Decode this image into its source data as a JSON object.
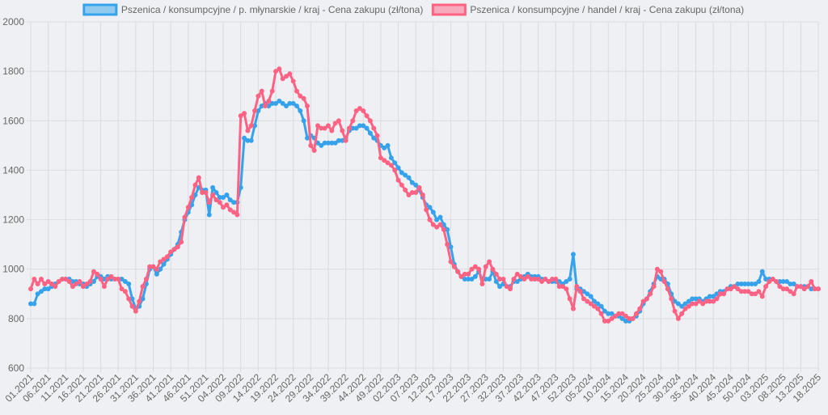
{
  "chart_data": {
    "type": "line",
    "categories": [
      "01.2021",
      null,
      null,
      null,
      null,
      "06.2021",
      null,
      null,
      null,
      null,
      "11.2021",
      null,
      null,
      null,
      null,
      "16.2021",
      null,
      null,
      null,
      null,
      "21.2021",
      null,
      null,
      null,
      null,
      "26.2021",
      null,
      null,
      null,
      null,
      "31.2021",
      null,
      null,
      null,
      null,
      "36.2021",
      null,
      null,
      null,
      null,
      "41.2021",
      null,
      null,
      null,
      null,
      "46.2021",
      null,
      null,
      null,
      null,
      "51.2021",
      null,
      null,
      null,
      null,
      "04.2022",
      null,
      null,
      null,
      null,
      "09.2022",
      null,
      null,
      null,
      null,
      "14.2022",
      null,
      null,
      null,
      null,
      "19.2022",
      null,
      null,
      null,
      null,
      "24.2022",
      null,
      null,
      null,
      null,
      "29.2022",
      null,
      null,
      null,
      null,
      "34.2022",
      null,
      null,
      null,
      null,
      "39.2022",
      null,
      null,
      null,
      null,
      "44.2022",
      null,
      null,
      null,
      null,
      "49.2022",
      null,
      null,
      null,
      null,
      "02.2023",
      null,
      null,
      null,
      null,
      "07.2023",
      null,
      null,
      null,
      null,
      "12.2023",
      null,
      null,
      null,
      null,
      "17.2023",
      null,
      null,
      null,
      null,
      "22.2023",
      null,
      null,
      null,
      null,
      "27.2023",
      null,
      null,
      null,
      null,
      "32.2023",
      null,
      null,
      null,
      null,
      "37.2023",
      null,
      null,
      null,
      null,
      "42.2023",
      null,
      null,
      null,
      null,
      "47.2023",
      null,
      null,
      null,
      null,
      "52.2023",
      null,
      null,
      null,
      null,
      "05.2024",
      null,
      null,
      null,
      null,
      "10.2024",
      null,
      null,
      null,
      null,
      "15.2024",
      null,
      null,
      null,
      null,
      "20.2024",
      null,
      null,
      null,
      null,
      "25.2024",
      null,
      null,
      null,
      null,
      "30.2024",
      null,
      null,
      null,
      null,
      "35.2024",
      null,
      null,
      null,
      null,
      "40.2024",
      null,
      null,
      null,
      null,
      "45.2024",
      null,
      null,
      null,
      null,
      "50.2024",
      null,
      null,
      null,
      null,
      "03.2025",
      null,
      null,
      null,
      null,
      "08.2025",
      null,
      null,
      null,
      null,
      "13.2025",
      null,
      null,
      null,
      null,
      "18.2025"
    ],
    "series": [
      {
        "name": "Pszenica / konsumpcyjne / p. młynarskie / kraj - Cena zakupu (zł/tona)",
        "color": "#36a2eb",
        "values": [
          860,
          860,
          900,
          910,
          920,
          920,
          930,
          940,
          950,
          960,
          960,
          960,
          950,
          950,
          940,
          940,
          930,
          940,
          950,
          970,
          970,
          960,
          970,
          960,
          960,
          960,
          960,
          950,
          940,
          880,
          840,
          850,
          880,
          940,
          1000,
          1010,
          980,
          1000,
          1020,
          1040,
          1060,
          1080,
          1100,
          1150,
          1200,
          1230,
          1260,
          1300,
          1330,
          1320,
          1320,
          1220,
          1330,
          1310,
          1290,
          1290,
          1300,
          1280,
          1270,
          1270,
          1330,
          1530,
          1520,
          1520,
          1580,
          1640,
          1660,
          1670,
          1660,
          1670,
          1670,
          1680,
          1670,
          1660,
          1670,
          1670,
          1660,
          1640,
          1600,
          1530,
          1540,
          1530,
          1510,
          1500,
          1510,
          1510,
          1510,
          1510,
          1520,
          1520,
          1530,
          1560,
          1570,
          1570,
          1580,
          1580,
          1570,
          1550,
          1530,
          1520,
          1500,
          1490,
          1500,
          1450,
          1430,
          1410,
          1390,
          1380,
          1370,
          1350,
          1340,
          1320,
          1290,
          1260,
          1250,
          1230,
          1200,
          1210,
          1180,
          1160,
          1090,
          1020,
          990,
          970,
          960,
          960,
          960,
          970,
          990,
          960,
          960,
          960,
          990,
          950,
          930,
          940,
          930,
          930,
          950,
          950,
          960,
          970,
          980,
          970,
          970,
          970,
          960,
          960,
          950,
          950,
          950,
          950,
          940,
          950,
          960,
          1060,
          920,
          920,
          910,
          900,
          890,
          870,
          860,
          850,
          830,
          820,
          820,
          810,
          810,
          800,
          790,
          790,
          800,
          810,
          830,
          860,
          880,
          910,
          940,
          970,
          960,
          960,
          940,
          900,
          870,
          860,
          850,
          860,
          870,
          880,
          880,
          880,
          870,
          880,
          890,
          890,
          900,
          910,
          910,
          920,
          930,
          930,
          940,
          940,
          940,
          940,
          940,
          940,
          950,
          990,
          960,
          960,
          960,
          950,
          950,
          950,
          950,
          940,
          940,
          930,
          930,
          930,
          930,
          920,
          920,
          920
        ]
      },
      {
        "name": "Pszenica / konsumpcyjne / handel / kraj - Cena zakupu (zł/tona)",
        "color": "#ff6384",
        "values": [
          920,
          960,
          940,
          960,
          940,
          950,
          940,
          930,
          950,
          960,
          960,
          950,
          930,
          940,
          950,
          930,
          940,
          950,
          990,
          980,
          960,
          930,
          960,
          970,
          960,
          960,
          920,
          910,
          880,
          850,
          830,
          870,
          930,
          960,
          1010,
          1010,
          1000,
          1030,
          1040,
          1050,
          1070,
          1080,
          1090,
          1110,
          1210,
          1250,
          1290,
          1340,
          1370,
          1310,
          1310,
          1270,
          1300,
          1280,
          1270,
          1250,
          1260,
          1240,
          1230,
          1220,
          1620,
          1630,
          1560,
          1580,
          1640,
          1700,
          1720,
          1660,
          1680,
          1720,
          1800,
          1810,
          1770,
          1780,
          1790,
          1760,
          1720,
          1700,
          1690,
          1660,
          1500,
          1480,
          1580,
          1570,
          1570,
          1580,
          1560,
          1590,
          1600,
          1560,
          1520,
          1570,
          1600,
          1640,
          1650,
          1640,
          1620,
          1600,
          1570,
          1540,
          1450,
          1440,
          1430,
          1420,
          1400,
          1360,
          1340,
          1320,
          1300,
          1310,
          1310,
          1330,
          1300,
          1240,
          1200,
          1180,
          1170,
          1180,
          1160,
          1100,
          1030,
          1010,
          990,
          970,
          980,
          980,
          1000,
          1010,
          1000,
          940,
          1010,
          1030,
          1000,
          980,
          960,
          960,
          930,
          920,
          960,
          980,
          970,
          960,
          970,
          960,
          960,
          960,
          950,
          960,
          950,
          960,
          960,
          930,
          930,
          920,
          880,
          840,
          930,
          910,
          880,
          870,
          860,
          850,
          840,
          820,
          790,
          790,
          800,
          810,
          820,
          820,
          810,
          800,
          800,
          820,
          840,
          870,
          880,
          900,
          930,
          1000,
          990,
          950,
          920,
          880,
          830,
          800,
          820,
          840,
          850,
          860,
          860,
          870,
          860,
          870,
          870,
          870,
          880,
          900,
          900,
          920,
          920,
          930,
          920,
          910,
          910,
          910,
          900,
          900,
          910,
          890,
          930,
          950,
          960,
          950,
          930,
          920,
          920,
          910,
          900,
          930,
          930,
          920,
          930,
          950,
          920,
          920
        ]
      }
    ],
    "ylim": [
      600,
      2000
    ],
    "yticks": [
      600,
      800,
      1000,
      1200,
      1400,
      1600,
      1800,
      2000
    ],
    "grid": true,
    "legend": "top"
  }
}
